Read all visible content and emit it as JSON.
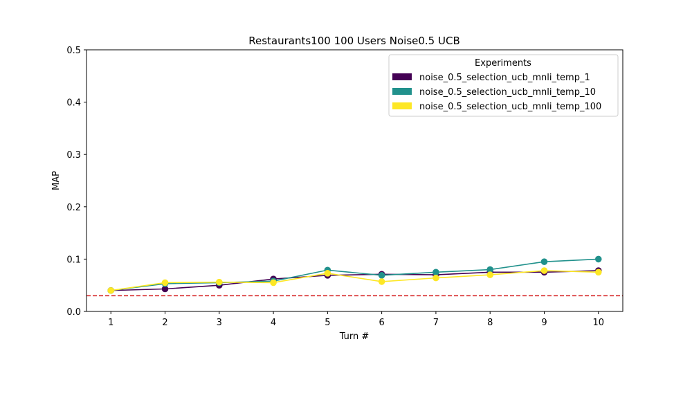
{
  "chart_data": {
    "type": "line",
    "title": "Restaurants100 100 Users Noise0.5 UCB",
    "xlabel": "Turn #",
    "ylabel": "MAP",
    "x": [
      1,
      2,
      3,
      4,
      5,
      6,
      7,
      8,
      9,
      10
    ],
    "xlim": [
      0.55,
      10.45
    ],
    "ylim": [
      0,
      0.5
    ],
    "xticks": [
      "1",
      "2",
      "3",
      "4",
      "5",
      "6",
      "7",
      "8",
      "9",
      "10"
    ],
    "yticks": [
      "0.0",
      "0.1",
      "0.2",
      "0.3",
      "0.4",
      "0.5"
    ],
    "grid": false,
    "legend": {
      "title": "Experiments",
      "placement": "top-right"
    },
    "baseline": {
      "y": 0.03,
      "color": "#d62728",
      "style": "dashed"
    },
    "series": [
      {
        "name": "noise_0.5_selection_ucb_mnli_temp_1",
        "color": "#440154",
        "values": [
          0.04,
          0.043,
          0.05,
          0.062,
          0.069,
          0.071,
          0.07,
          0.075,
          0.075,
          0.078
        ]
      },
      {
        "name": "noise_0.5_selection_ucb_mnli_temp_10",
        "color": "#21918c",
        "values": [
          0.04,
          0.053,
          0.055,
          0.058,
          0.079,
          0.069,
          0.075,
          0.08,
          0.095,
          0.1
        ]
      },
      {
        "name": "noise_0.5_selection_ucb_mnli_temp_100",
        "color": "#fde725",
        "values": [
          0.04,
          0.055,
          0.056,
          0.055,
          0.073,
          0.057,
          0.064,
          0.07,
          0.078,
          0.075
        ]
      }
    ]
  }
}
